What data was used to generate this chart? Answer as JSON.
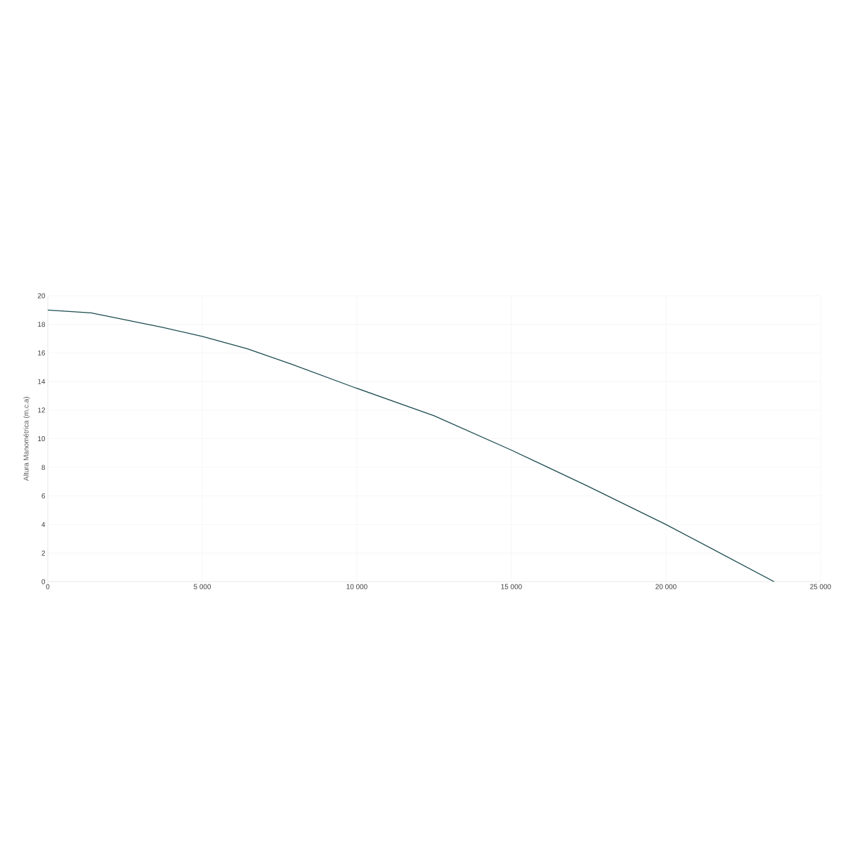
{
  "chart_data": {
    "type": "line",
    "ylabel": "Altura Manométrica (m.c.a)",
    "series": [
      {
        "color": "#1b4b4f",
        "x": [
          0,
          1400,
          3700,
          5000,
          6450,
          7900,
          9900,
          12500,
          15000,
          17450,
          20000,
          23500
        ],
        "values": [
          19,
          18.8,
          17.8,
          17.15,
          16.3,
          15.2,
          13.6,
          11.6,
          9.2,
          6.7,
          4.0,
          0
        ]
      }
    ],
    "xlim": [
      0,
      25000
    ],
    "ylim": [
      0,
      20
    ],
    "xticks": [
      0,
      {
        "value": 5000,
        "label": "5 000"
      },
      {
        "value": 10000,
        "label": "10 000"
      },
      {
        "value": 15000,
        "label": "15 000"
      },
      {
        "value": 20000,
        "label": "20 000"
      },
      {
        "value": 25000,
        "label": "25 000"
      }
    ],
    "yticks": [
      0,
      2,
      4,
      6,
      8,
      10,
      12,
      14,
      16,
      18,
      20
    ],
    "grid": true
  }
}
